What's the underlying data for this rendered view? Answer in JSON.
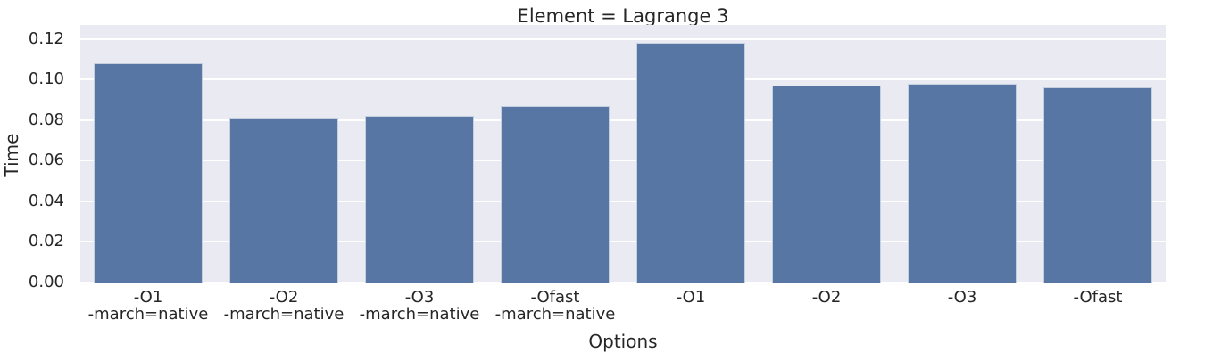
{
  "chart_data": {
    "type": "bar",
    "title": "Element = Lagrange 3",
    "xlabel": "Options",
    "ylabel": "Time",
    "categories": [
      "-O1\n-march=native",
      "-O2\n-march=native",
      "-O3\n-march=native",
      "-Ofast\n-march=native",
      "-O1",
      "-O2",
      "-O3",
      "-Ofast"
    ],
    "values": [
      0.108,
      0.081,
      0.082,
      0.087,
      0.118,
      0.097,
      0.098,
      0.096
    ],
    "ylim": [
      0,
      0.1268
    ],
    "yticks": [
      0.0,
      0.02,
      0.04,
      0.06,
      0.08,
      0.1,
      0.12
    ],
    "ytick_labels": [
      "0.00",
      "0.02",
      "0.04",
      "0.06",
      "0.08",
      "0.10",
      "0.12"
    ],
    "grid": true,
    "legend": false,
    "colors": {
      "bar": "#5876a4",
      "plot_background": "#eaeaf2",
      "gridline": "#ffffff",
      "text": "#262626",
      "figure_background": "#ffffff"
    }
  }
}
